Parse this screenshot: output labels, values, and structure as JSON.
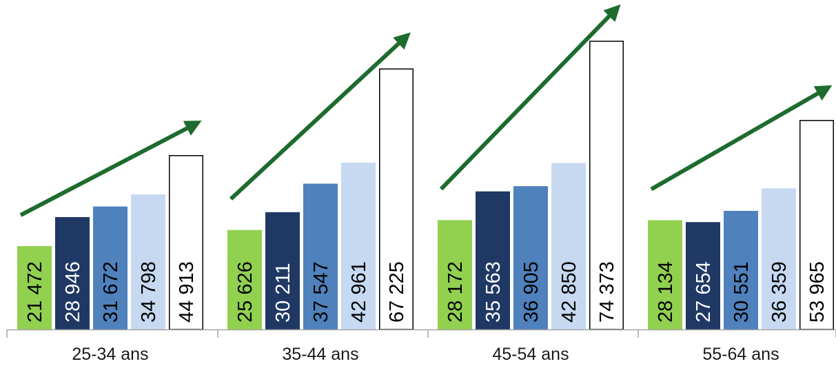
{
  "chart_data": {
    "type": "bar",
    "categories": [
      "25-34 ans",
      "35-44 ans",
      "45-54 ans",
      "55-64 ans"
    ],
    "series": [
      {
        "values": [
          21472,
          25626,
          28172,
          28134
        ],
        "color": "#92d050",
        "label_color": "#000000",
        "outline": "#92d050"
      },
      {
        "values": [
          28946,
          30211,
          35563,
          27654
        ],
        "color": "#1f3864",
        "label_color": "#ffffff",
        "outline": "#1f3864"
      },
      {
        "values": [
          31672,
          37547,
          36905,
          30551
        ],
        "color": "#4f81bd",
        "label_color": "#000000",
        "outline": "#4f81bd"
      },
      {
        "values": [
          34798,
          42961,
          42850,
          36359
        ],
        "color": "#c6d9f1",
        "label_color": "#000000",
        "outline": "#c6d9f1"
      },
      {
        "values": [
          44913,
          67225,
          74373,
          53965
        ],
        "color": "#ffffff",
        "label_color": "#000000",
        "outline": "#000000"
      }
    ],
    "value_labels": [
      [
        "21 472",
        "28 946",
        "31 672",
        "34 798",
        "44 913"
      ],
      [
        "25 626",
        "30 211",
        "37 547",
        "42 961",
        "67 225"
      ],
      [
        "28 172",
        "35 563",
        "36 905",
        "42 850",
        "74 373"
      ],
      [
        "28 134",
        "27 654",
        "30 551",
        "36 359",
        "53 965"
      ]
    ],
    "trend_arrows": true,
    "arrow_color": "#1e6b2e",
    "axis_color": "#a6a6a6",
    "ylim": [
      0,
      80000
    ],
    "grid": false,
    "title": "",
    "xlabel": "",
    "ylabel": ""
  }
}
